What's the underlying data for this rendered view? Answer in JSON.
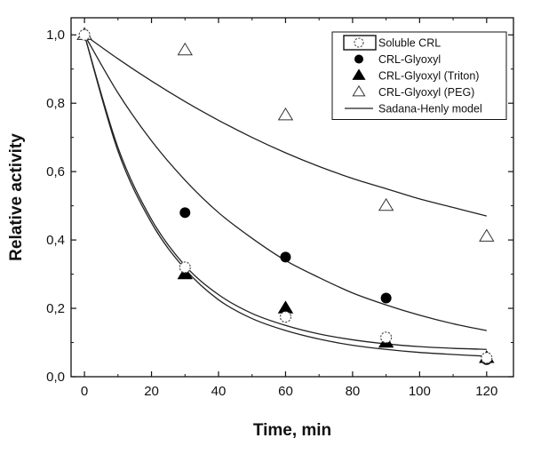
{
  "chart_data": {
    "type": "scatter",
    "xlabel": "Time, min",
    "ylabel": "Relative activity",
    "xlim": [
      -4,
      128
    ],
    "ylim": [
      0,
      1.05
    ],
    "x_ticks": [
      0,
      20,
      40,
      60,
      80,
      100,
      120
    ],
    "x_tick_labels": [
      "0",
      "20",
      "40",
      "60",
      "80",
      "100",
      "120"
    ],
    "y_ticks": [
      0,
      0.2,
      0.4,
      0.6,
      0.8,
      1.0
    ],
    "y_tick_labels": [
      "0,0",
      "0,2",
      "0,4",
      "0,6",
      "0,8",
      "1,0"
    ],
    "grid": false,
    "legend_position": "top-right",
    "series": [
      {
        "name": "Soluble CRL",
        "marker": "dashed-open-circle",
        "x": [
          0,
          30,
          60,
          90,
          120
        ],
        "y": [
          1.0,
          0.32,
          0.175,
          0.115,
          0.055
        ]
      },
      {
        "name": "CRL-Glyoxyl",
        "marker": "filled-circle",
        "x": [
          0,
          30,
          60,
          90,
          120
        ],
        "y": [
          1.0,
          0.48,
          0.35,
          0.23,
          0.05
        ]
      },
      {
        "name": "CRL-Glyoxyl (Triton)",
        "marker": "filled-triangle",
        "x": [
          0,
          30,
          60,
          90,
          120
        ],
        "y": [
          1.0,
          0.3,
          0.2,
          0.1,
          0.055
        ]
      },
      {
        "name": "CRL-Glyoxyl (PEG)",
        "marker": "open-triangle",
        "x": [
          0,
          30,
          60,
          90,
          120
        ],
        "y": [
          1.0,
          0.955,
          0.765,
          0.5,
          0.41
        ]
      }
    ],
    "model_curves": [
      {
        "name": "Sadana-Henly model",
        "x": [
          0,
          10,
          20,
          30,
          40,
          50,
          60,
          70,
          80,
          90,
          100,
          110,
          120
        ],
        "y": [
          1.0,
          0.93,
          0.865,
          0.805,
          0.75,
          0.7,
          0.655,
          0.615,
          0.58,
          0.55,
          0.52,
          0.495,
          0.47
        ]
      },
      {
        "name": "",
        "x": [
          0,
          10,
          20,
          30,
          40,
          50,
          60,
          70,
          80,
          90,
          100,
          110,
          120
        ],
        "y": [
          1.0,
          0.83,
          0.69,
          0.575,
          0.48,
          0.405,
          0.34,
          0.29,
          0.245,
          0.21,
          0.18,
          0.155,
          0.135
        ]
      },
      {
        "name": "",
        "x": [
          0,
          10,
          20,
          30,
          40,
          50,
          60,
          70,
          80,
          90,
          100,
          110,
          120
        ],
        "y": [
          1.0,
          0.67,
          0.46,
          0.325,
          0.24,
          0.185,
          0.15,
          0.125,
          0.108,
          0.096,
          0.088,
          0.083,
          0.08
        ]
      },
      {
        "name": "",
        "x": [
          0,
          10,
          20,
          30,
          40,
          50,
          60,
          70,
          80,
          90,
          100,
          110,
          120
        ],
        "y": [
          1.0,
          0.66,
          0.45,
          0.315,
          0.225,
          0.17,
          0.135,
          0.11,
          0.092,
          0.08,
          0.071,
          0.065,
          0.06
        ]
      }
    ],
    "legend_entries": [
      {
        "label": "Soluble CRL",
        "marker": "dashed-open-circle"
      },
      {
        "label": "CRL-Glyoxyl",
        "marker": "filled-circle"
      },
      {
        "label": "CRL-Glyoxyl (Triton)",
        "marker": "filled-triangle"
      },
      {
        "label": "CRL-Glyoxyl (PEG)",
        "marker": "open-triangle"
      },
      {
        "label": "Sadana-Henly model",
        "marker": "line"
      }
    ]
  }
}
